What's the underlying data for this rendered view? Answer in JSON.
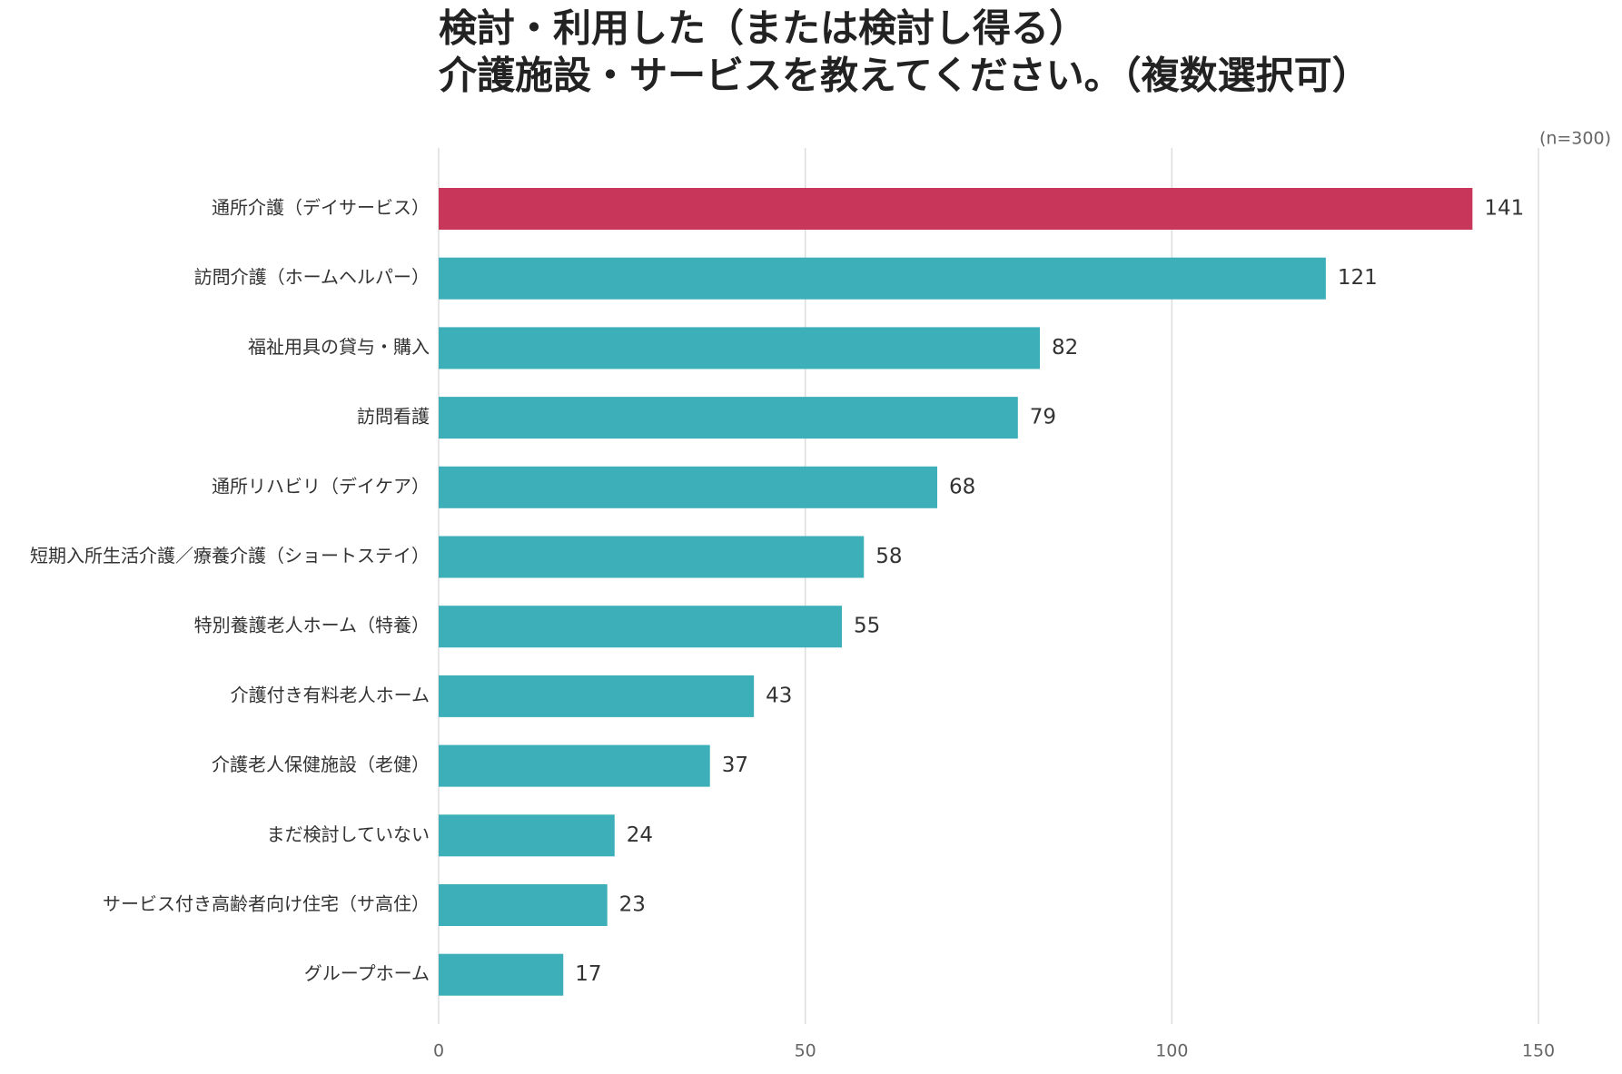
{
  "chart_data": {
    "type": "bar",
    "orientation": "horizontal",
    "title": [
      "検討・利用した（または検討し得る）",
      "介護施設・サービスを教えてください。（複数選択可）"
    ],
    "annotation": "(n=300)",
    "categories": [
      "通所介護（デイサービス）",
      "訪問介護（ホームヘルパー）",
      "福祉用具の貸与・購入",
      "訪問看護",
      "通所リハビリ（デイケア）",
      "短期入所生活介護／療養介護（ショートステイ）",
      "特別養護老人ホーム（特養）",
      "介護付き有料老人ホーム",
      "介護老人保健施設（老健）",
      "まだ検討していない",
      "サービス付き高齢者向け住宅（サ高住）",
      "グループホーム"
    ],
    "values": [
      141,
      121,
      82,
      79,
      68,
      58,
      55,
      43,
      37,
      24,
      23,
      17
    ],
    "colors": [
      "#c8375a",
      "#3dafb9",
      "#3dafb9",
      "#3dafb9",
      "#3dafb9",
      "#3dafb9",
      "#3dafb9",
      "#3dafb9",
      "#3dafb9",
      "#3dafb9",
      "#3dafb9",
      "#3dafb9"
    ],
    "xlim": [
      0,
      150
    ],
    "xticks": [
      0,
      50,
      100,
      150
    ],
    "grid": true
  }
}
